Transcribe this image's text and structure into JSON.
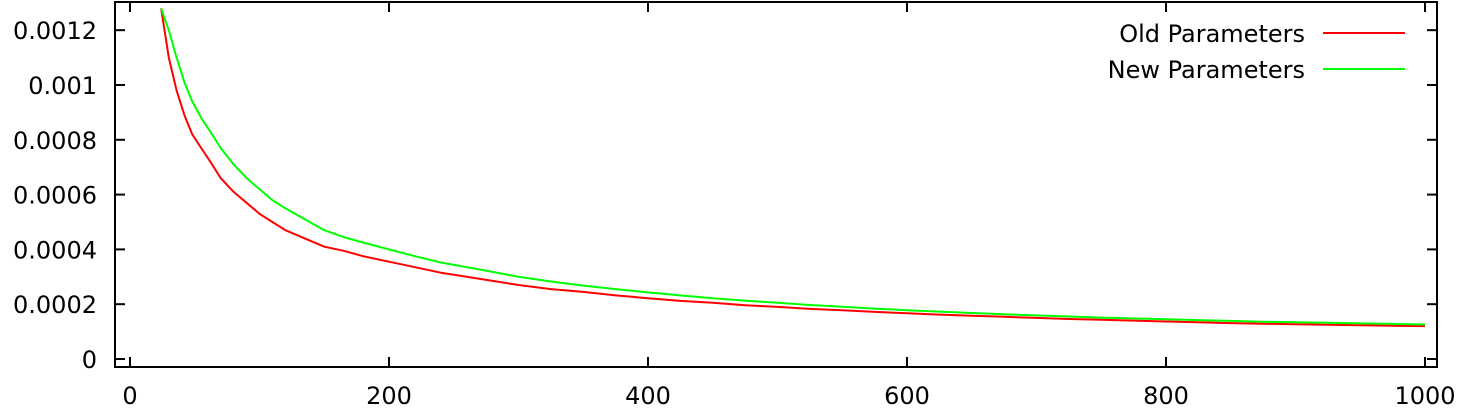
{
  "chart_data": {
    "type": "line",
    "title": "",
    "xlabel": "",
    "ylabel": "",
    "xlim": [
      0,
      1000
    ],
    "ylim": [
      0,
      0.00127
    ],
    "x_ticks": [
      0,
      200,
      400,
      600,
      800,
      1000
    ],
    "x_tick_labels": [
      "0",
      "200",
      "400",
      "600",
      "800",
      "1000"
    ],
    "y_ticks": [
      0,
      0.0002,
      0.0004,
      0.0006,
      0.0008,
      0.001,
      0.0012
    ],
    "y_tick_labels": [
      "0",
      "0.0002",
      "0.0004",
      "0.0006",
      "0.0008",
      "0.001",
      "0.0012"
    ],
    "grid": false,
    "legend": {
      "position": "top-right"
    },
    "x": [
      24,
      30,
      36,
      42,
      48,
      55,
      62,
      70,
      80,
      90,
      100,
      110,
      120,
      135,
      150,
      165,
      180,
      200,
      220,
      240,
      260,
      280,
      300,
      325,
      350,
      375,
      400,
      425,
      450,
      475,
      500,
      525,
      550,
      575,
      600,
      625,
      650,
      675,
      700,
      725,
      750,
      775,
      800,
      825,
      850,
      875,
      900,
      925,
      950,
      975,
      1000
    ],
    "series": [
      {
        "name": "Old Parameters",
        "color": "#ff0000",
        "values": [
          0.00128,
          0.0011,
          0.00098,
          0.00089,
          0.00082,
          0.00077,
          0.00072,
          0.00066,
          0.00061,
          0.00057,
          0.00053,
          0.0005,
          0.00047,
          0.00044,
          0.00041,
          0.000395,
          0.000375,
          0.000355,
          0.000335,
          0.000315,
          0.0003,
          0.000285,
          0.00027,
          0.000255,
          0.000245,
          0.000232,
          0.000222,
          0.000212,
          0.000205,
          0.000196,
          0.00019,
          0.000183,
          0.000178,
          0.000172,
          0.000167,
          0.000162,
          0.000158,
          0.000154,
          0.00015,
          0.000146,
          0.000143,
          0.00014,
          0.000137,
          0.000134,
          0.000131,
          0.000129,
          0.000127,
          0.000125,
          0.000123,
          0.000121,
          0.00012
        ]
      },
      {
        "name": "New Parameters",
        "color": "#00ff00",
        "values": [
          0.00128,
          0.0012,
          0.0011,
          0.00101,
          0.00094,
          0.00088,
          0.00083,
          0.00077,
          0.00071,
          0.00066,
          0.00062,
          0.00058,
          0.00055,
          0.00051,
          0.00047,
          0.000445,
          0.000425,
          0.0004,
          0.000375,
          0.000352,
          0.000335,
          0.000318,
          0.0003,
          0.000283,
          0.000268,
          0.000255,
          0.000243,
          0.000232,
          0.000222,
          0.000213,
          0.000205,
          0.000197,
          0.000191,
          0.000184,
          0.000178,
          0.000173,
          0.000168,
          0.000163,
          0.000159,
          0.000155,
          0.000151,
          0.000148,
          0.000145,
          0.000142,
          0.000139,
          0.000136,
          0.000134,
          0.000132,
          0.00013,
          0.000128,
          0.000126
        ]
      }
    ]
  }
}
